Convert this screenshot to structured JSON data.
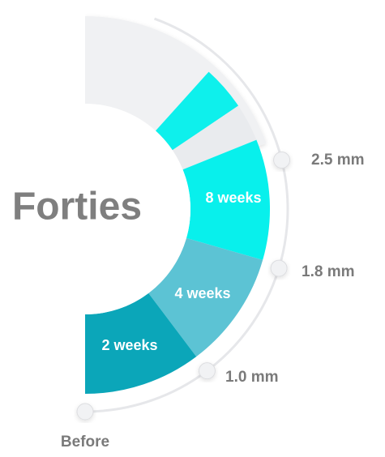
{
  "title": "Forties",
  "segments": [
    {
      "label": "2 weeks"
    },
    {
      "label": "4 weeks"
    },
    {
      "label": "8 weeks"
    }
  ],
  "markers": [
    {
      "label": "Before"
    },
    {
      "label": "1.0 mm"
    },
    {
      "label": "1.8 mm"
    },
    {
      "label": "2.5 mm"
    }
  ]
}
